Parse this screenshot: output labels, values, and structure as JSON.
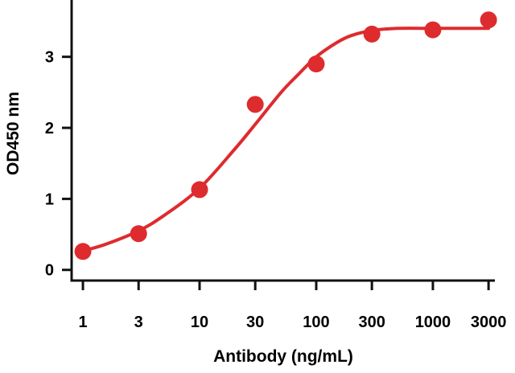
{
  "chart_data": {
    "type": "scatter",
    "title": "",
    "xlabel": "Antibody (ng/mL)",
    "ylabel": "OD450 nm",
    "x_scale": "log",
    "x_ticks": [
      1,
      3,
      10,
      30,
      100,
      300,
      1000,
      3000
    ],
    "x_tick_labels": [
      "1",
      "3",
      "10",
      "30",
      "100",
      "300",
      "1000",
      "3000"
    ],
    "y_ticks": [
      0,
      1,
      2,
      3
    ],
    "y_tick_labels": [
      "0",
      "1",
      "2",
      "3"
    ],
    "xlim": [
      0.8,
      3400
    ],
    "ylim": [
      -0.15,
      3.8
    ],
    "grid": false,
    "legend": "none",
    "series": [
      {
        "x": [
          1,
          3,
          10,
          30,
          100,
          300,
          1000,
          3000
        ],
        "y": [
          0.26,
          0.51,
          1.13,
          2.33,
          2.9,
          3.32,
          3.38,
          3.52
        ],
        "fit": "sigmoidal",
        "fit_curve": {
          "x": [
            0.9,
            1.5,
            3,
            5,
            10,
            20,
            30,
            50,
            70,
            100,
            150,
            200,
            300,
            500,
            1000,
            2000,
            3000
          ],
          "y": [
            0.25,
            0.35,
            0.55,
            0.77,
            1.15,
            1.7,
            2.05,
            2.5,
            2.75,
            3.0,
            3.2,
            3.3,
            3.37,
            3.4,
            3.4,
            3.4,
            3.4
          ]
        }
      }
    ],
    "colors": {
      "series": "#de2b2e",
      "axis": "#111111"
    }
  }
}
